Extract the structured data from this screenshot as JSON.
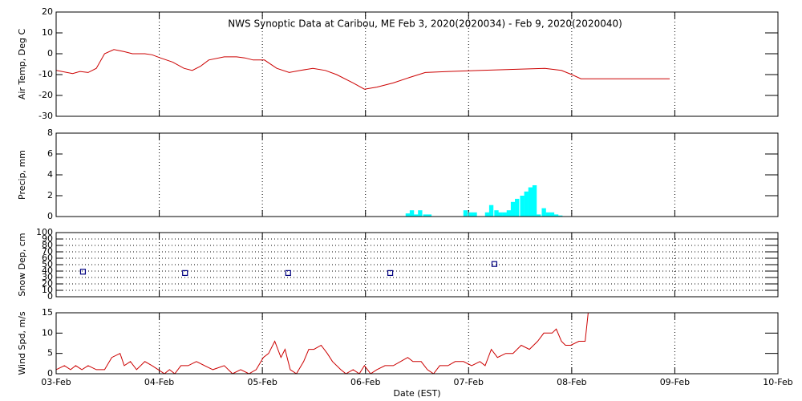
{
  "title": "NWS Synoptic Data at Caribou, ME   Feb  3, 2020(2020034) - Feb  9, 2020(2020040)",
  "xlabel": "Date (EST)",
  "xlim": [
    0,
    7
  ],
  "xticks": [
    {
      "value": 0,
      "label": "03-Feb"
    },
    {
      "value": 1,
      "label": "04-Feb"
    },
    {
      "value": 2,
      "label": "05-Feb"
    },
    {
      "value": 3,
      "label": "06-Feb"
    },
    {
      "value": 4,
      "label": "07-Feb"
    },
    {
      "value": 5,
      "label": "08-Feb"
    },
    {
      "value": 6,
      "label": "09-Feb"
    },
    {
      "value": 7,
      "label": "10-Feb"
    }
  ],
  "chart_data": [
    {
      "type": "line",
      "ylabel": "Air Temp, Deg C",
      "color": "#cc0000",
      "ylim": [
        -30,
        20
      ],
      "yticks": [
        -30,
        -20,
        -10,
        0,
        10,
        20
      ],
      "grid": "x",
      "x": [
        0,
        0.16,
        0.23,
        0.31,
        0.39,
        0.47,
        0.56,
        0.66,
        0.74,
        0.86,
        0.93,
        1.01,
        1.13,
        1.24,
        1.32,
        1.4,
        1.48,
        1.63,
        1.75,
        1.83,
        1.91,
        2.02,
        2.14,
        2.26,
        2.37,
        2.49,
        2.61,
        2.72,
        2.88,
        2.99,
        3.11,
        3.27,
        3.42,
        3.58,
        3.81,
        4.12,
        4.43,
        4.74,
        4.9,
        5.0,
        5.09,
        5.95
      ],
      "values": [
        -8,
        -9.5,
        -8.5,
        -9,
        -7,
        0,
        2,
        1,
        0,
        0,
        -0.5,
        -2,
        -4,
        -7,
        -8,
        -6,
        -3,
        -1.5,
        -1.5,
        -2,
        -3,
        -3,
        -7,
        -9,
        -8,
        -7,
        -8,
        -10,
        -14,
        -17,
        -16,
        -14,
        -11.5,
        -9,
        -8.5,
        -8,
        -7.5,
        -7,
        -8,
        -10,
        -12,
        -12
      ]
    },
    {
      "type": "bar",
      "ylabel": "Precip, mm",
      "color": "#00ffff",
      "ylim": [
        0,
        8
      ],
      "yticks": [
        0,
        2,
        4,
        6,
        8
      ],
      "grid": "x",
      "x": [
        3.41,
        3.45,
        3.49,
        3.53,
        3.58,
        3.62,
        3.97,
        4.02,
        4.06,
        4.18,
        4.22,
        4.27,
        4.31,
        4.35,
        4.39,
        4.43,
        4.47,
        4.52,
        4.56,
        4.6,
        4.64,
        4.68,
        4.73,
        4.77,
        4.81,
        4.85,
        4.89
      ],
      "values": [
        0.3,
        0.6,
        0.2,
        0.6,
        0.2,
        0.2,
        0.6,
        0.4,
        0.4,
        0.4,
        1.1,
        0.6,
        0.4,
        0.4,
        0.6,
        1.4,
        1.7,
        2.0,
        2.4,
        2.8,
        3.0,
        0.2,
        0.8,
        0.4,
        0.4,
        0.2,
        0.1
      ]
    },
    {
      "type": "scatter",
      "ylabel": "Snow Dep, cm",
      "color": "#000080",
      "ylim": [
        0,
        100
      ],
      "yticks": [
        0,
        10,
        20,
        30,
        40,
        50,
        60,
        70,
        80,
        90,
        100
      ],
      "grid": "xy",
      "x": [
        0.26,
        1.25,
        2.25,
        3.24,
        4.25
      ],
      "values": [
        39,
        37,
        37,
        37,
        51
      ]
    },
    {
      "type": "line",
      "ylabel": "Wind Spd, m/s",
      "color": "#cc0000",
      "ylim": [
        0,
        15
      ],
      "yticks": [
        0,
        5,
        10,
        15
      ],
      "grid": "x",
      "x": [
        0,
        0.08,
        0.14,
        0.19,
        0.25,
        0.31,
        0.39,
        0.47,
        0.54,
        0.62,
        0.66,
        0.72,
        0.78,
        0.86,
        0.93,
        0.99,
        1.05,
        1.1,
        1.15,
        1.21,
        1.28,
        1.36,
        1.44,
        1.52,
        1.63,
        1.71,
        1.79,
        1.87,
        1.94,
        2.01,
        2.06,
        2.12,
        2.18,
        2.22,
        2.27,
        2.33,
        2.4,
        2.45,
        2.5,
        2.57,
        2.63,
        2.68,
        2.76,
        2.81,
        2.88,
        2.94,
        2.99,
        3.05,
        3.11,
        3.19,
        3.27,
        3.34,
        3.41,
        3.46,
        3.54,
        3.6,
        3.66,
        3.72,
        3.8,
        3.87,
        3.95,
        4.03,
        4.11,
        4.16,
        4.22,
        4.28,
        4.36,
        4.43,
        4.51,
        4.59,
        4.67,
        4.73,
        4.81,
        4.85,
        4.9,
        4.94,
        4.99,
        5.07,
        5.13,
        5.16
      ],
      "values": [
        1,
        2,
        1,
        2,
        1,
        2,
        1,
        1,
        4,
        5,
        2,
        3,
        1,
        3,
        2,
        1,
        0,
        1,
        0,
        2,
        2,
        3,
        2,
        1,
        2,
        0,
        1,
        0,
        1,
        4,
        5,
        8,
        4,
        6,
        1,
        0,
        3,
        6,
        6,
        7,
        5,
        3,
        1,
        0,
        1,
        0,
        2,
        0,
        1,
        2,
        2,
        3,
        4,
        3,
        3,
        1,
        0,
        2,
        2,
        3,
        3,
        2,
        3,
        2,
        6,
        4,
        5,
        5,
        7,
        6,
        8,
        10,
        10,
        11,
        8,
        7,
        7,
        8,
        8,
        15
      ]
    }
  ]
}
